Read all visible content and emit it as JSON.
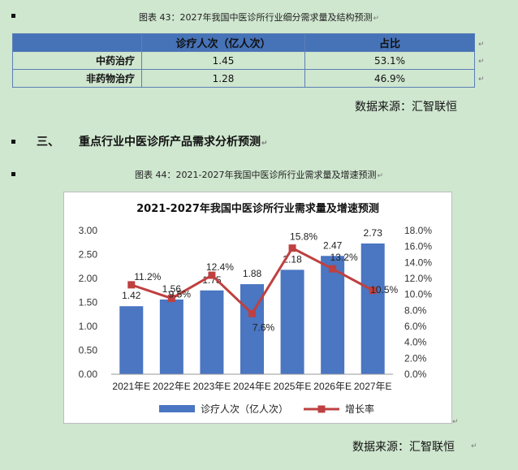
{
  "caption1": {
    "prefix": "图表 43：",
    "text": "2027年我国中医诊所行业细分需求量及结构预测"
  },
  "table": {
    "header": [
      "",
      "诊疗人次（亿人次）",
      "占比"
    ],
    "rows": [
      [
        "中药治疗",
        "1.45",
        "53.1%"
      ],
      [
        "非药物治疗",
        "1.28",
        "46.9%"
      ]
    ]
  },
  "source_text": "数据来源：汇智联恒",
  "section": {
    "number": "三、",
    "title": "重点行业中医诊所产品需求分析预测"
  },
  "caption2": {
    "prefix": "图表 44：",
    "text": "2021-2027年我国中医诊所行业需求量及增速预测"
  },
  "colors": {
    "bar": "#4a76c2",
    "line": "#bf4040",
    "table_header": "#4672b8",
    "background": "#cfe6cf"
  },
  "chart_data": {
    "type": "bar+line",
    "title": "2021-2027年我国中医诊所行业需求量及增速预测",
    "categories": [
      "2021年E",
      "2022年E",
      "2023年E",
      "2024年E",
      "2025年E",
      "2026年E",
      "2027年E"
    ],
    "series": [
      {
        "name": "诊疗人次（亿人次）",
        "type": "bar",
        "axis": "left",
        "values": [
          1.42,
          1.56,
          1.75,
          1.88,
          2.18,
          2.47,
          2.73
        ],
        "labels": [
          "1.42",
          "1.56",
          "1.75",
          "1.88",
          "2.18",
          "2.47",
          "2.73"
        ]
      },
      {
        "name": "增长率",
        "type": "line",
        "axis": "right",
        "values": [
          11.2,
          9.5,
          12.4,
          7.6,
          15.8,
          13.2,
          10.5
        ],
        "labels": [
          "11.2%",
          "9.5%",
          "12.4%",
          "7.6%",
          "15.8%",
          "13.2%",
          "10.5%"
        ]
      }
    ],
    "y_left": {
      "min": 0,
      "max": 3,
      "ticks": [
        "0.00",
        "0.50",
        "1.00",
        "1.50",
        "2.00",
        "2.50",
        "3.00"
      ]
    },
    "y_right": {
      "min": 0,
      "max": 18,
      "ticks": [
        "0.0%",
        "2.0%",
        "4.0%",
        "6.0%",
        "8.0%",
        "10.0%",
        "12.0%",
        "14.0%",
        "16.0%",
        "18.0%"
      ]
    },
    "grid": false,
    "legend": "bottom"
  }
}
